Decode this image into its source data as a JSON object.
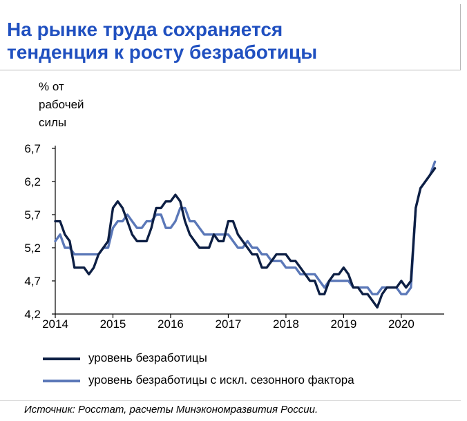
{
  "title_lines": [
    "На рынке труда сохраняется",
    "тенденция к росту безработицы"
  ],
  "y_unit_lines": [
    "% от",
    "рабочей",
    "силы"
  ],
  "source": "Источник: Росстат, расчеты Минэкономразвития России.",
  "chart_data": {
    "type": "line",
    "title": "На рынке труда сохраняется тенденция к росту безработицы",
    "ylabel": "% от рабочей силы",
    "ylim": [
      4.2,
      6.7
    ],
    "yticks": [
      "6,7",
      "6,2",
      "5,7",
      "5,2",
      "4,7",
      "4,2"
    ],
    "ytick_values": [
      6.7,
      6.2,
      5.7,
      5.2,
      4.7,
      4.2
    ],
    "xlim": [
      2014.0,
      2020.72
    ],
    "xticks": [
      "2014",
      "2015",
      "2016",
      "2017",
      "2018",
      "2019",
      "2020"
    ],
    "xtick_values": [
      2014,
      2015,
      2016,
      2017,
      2018,
      2019,
      2020
    ],
    "grid": false,
    "legend_position": "bottom",
    "colors": {
      "unemployment": "#0d1f44",
      "seasonally_adjusted": "#5b78b8"
    },
    "series": [
      {
        "name": "уровень безработицы",
        "color": "#0d1f44",
        "x_start": 2014.0,
        "x_step_months": 1,
        "values": [
          5.6,
          5.6,
          5.4,
          5.3,
          4.9,
          4.9,
          4.9,
          4.8,
          4.9,
          5.1,
          5.2,
          5.3,
          5.8,
          5.9,
          5.8,
          5.6,
          5.4,
          5.3,
          5.3,
          5.3,
          5.5,
          5.8,
          5.8,
          5.9,
          5.9,
          6.0,
          5.9,
          5.6,
          5.4,
          5.3,
          5.2,
          5.2,
          5.2,
          5.4,
          5.3,
          5.3,
          5.6,
          5.6,
          5.4,
          5.3,
          5.2,
          5.1,
          5.1,
          4.9,
          4.9,
          5.0,
          5.1,
          5.1,
          5.1,
          5.0,
          5.0,
          4.9,
          4.8,
          4.7,
          4.7,
          4.5,
          4.5,
          4.7,
          4.8,
          4.8,
          4.9,
          4.8,
          4.6,
          4.6,
          4.5,
          4.5,
          4.4,
          4.3,
          4.5,
          4.6,
          4.6,
          4.6,
          4.7,
          4.6,
          4.7,
          5.8,
          6.1,
          6.2,
          6.3,
          6.4
        ]
      },
      {
        "name": "уровень безработицы с искл. сезонного фактора",
        "color": "#5b78b8",
        "x_start": 2014.0,
        "x_step_months": 1,
        "values": [
          5.3,
          5.4,
          5.2,
          5.2,
          5.1,
          5.1,
          5.1,
          5.1,
          5.1,
          5.1,
          5.2,
          5.2,
          5.5,
          5.6,
          5.6,
          5.7,
          5.6,
          5.5,
          5.5,
          5.6,
          5.6,
          5.7,
          5.7,
          5.5,
          5.5,
          5.6,
          5.8,
          5.8,
          5.6,
          5.6,
          5.5,
          5.4,
          5.4,
          5.4,
          5.4,
          5.4,
          5.4,
          5.3,
          5.2,
          5.2,
          5.3,
          5.2,
          5.2,
          5.1,
          5.1,
          5.0,
          5.0,
          5.0,
          4.9,
          4.9,
          4.9,
          4.8,
          4.8,
          4.8,
          4.8,
          4.7,
          4.6,
          4.7,
          4.7,
          4.7,
          4.7,
          4.7,
          4.6,
          4.6,
          4.6,
          4.6,
          4.5,
          4.5,
          4.6,
          4.6,
          4.6,
          4.6,
          4.5,
          4.5,
          4.6,
          5.8,
          6.1,
          6.2,
          6.3,
          6.5
        ]
      }
    ]
  }
}
